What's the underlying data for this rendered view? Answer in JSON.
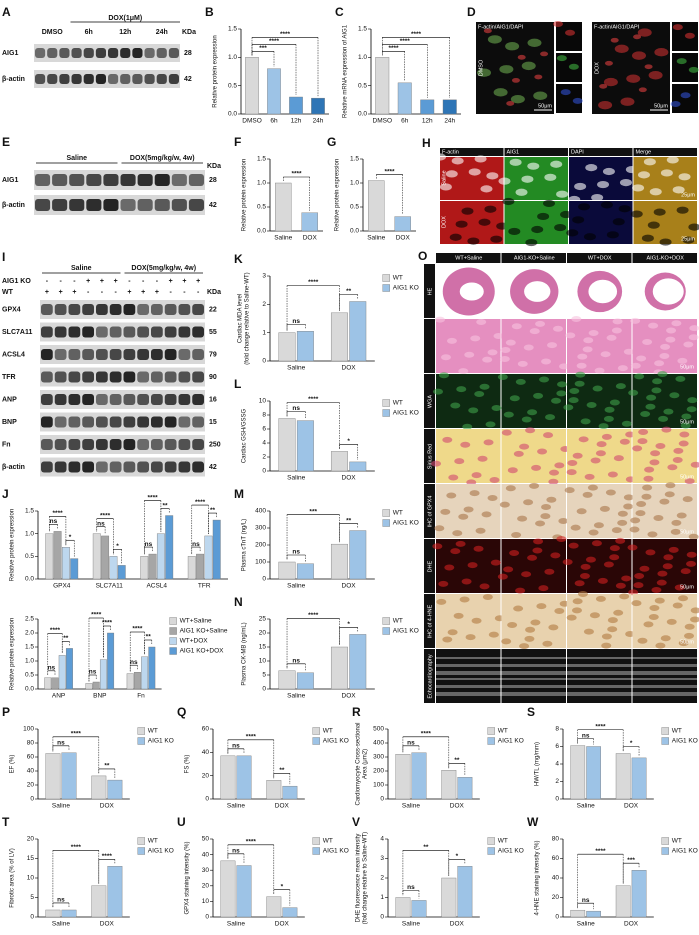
{
  "chart_data": [
    {
      "type": "bar",
      "letter": "B",
      "ylabel": "Relative protein expression",
      "categories": [
        "DMSO",
        "6h",
        "12h",
        "24h"
      ],
      "values": [
        1.0,
        0.8,
        0.3,
        0.28
      ],
      "colors": [
        "#d9d9d9",
        "#9dc3e6",
        "#5b9bd5",
        "#2e75b6"
      ],
      "ylim": [
        0,
        1.5
      ],
      "yticks": [
        {
          "value": 0,
          "label": "0.0"
        },
        0.5,
        {
          "value": 1,
          "label": "1.0"
        },
        1.5
      ],
      "significance": [
        "***",
        "****",
        "****"
      ]
    },
    {
      "type": "bar",
      "letter": "C",
      "ylabel": "Relative mRNA expression of AIG1",
      "categories": [
        "DMSO",
        "6h",
        "12h",
        "24h"
      ],
      "values": [
        1.0,
        0.55,
        0.25,
        0.25
      ],
      "colors": [
        "#d9d9d9",
        "#9dc3e6",
        "#5b9bd5",
        "#2e75b6"
      ],
      "ylim": [
        0,
        1.5
      ],
      "yticks": [
        {
          "value": 0,
          "label": "0.0"
        },
        0.5,
        {
          "value": 1,
          "label": "1.0"
        },
        1.5
      ],
      "significance": [
        "****",
        "****",
        "****"
      ]
    },
    {
      "type": "bar",
      "letter": "F",
      "ylabel": "Relative protein expression",
      "categories": [
        "Saline",
        "DOX"
      ],
      "values": [
        1.0,
        0.38
      ],
      "colors": [
        "#d9d9d9",
        "#9dc3e6"
      ],
      "ylim": [
        0,
        1.5
      ],
      "yticks": [
        {
          "value": 0,
          "label": "0.0"
        },
        0.5,
        {
          "value": 1,
          "label": "1.0"
        },
        1.5
      ],
      "significance": [
        "****"
      ]
    },
    {
      "type": "bar",
      "letter": "G",
      "ylabel": "Relative protein expression",
      "categories": [
        "Saline",
        "DOX"
      ],
      "values": [
        1.05,
        0.3
      ],
      "colors": [
        "#d9d9d9",
        "#9dc3e6"
      ],
      "ylim": [
        0,
        1.5
      ],
      "yticks": [
        {
          "value": 0,
          "label": "0.0"
        },
        0.5,
        {
          "value": 1,
          "label": "1.0"
        },
        1.5
      ],
      "significance": [
        "****"
      ]
    },
    {
      "type": "bar",
      "letter": "K",
      "ylabel": [
        "Cardiac MDA level",
        "(fold change relative to Saline-WT)"
      ],
      "categories": [
        "Saline",
        "DOX"
      ],
      "series": [
        {
          "name": "WT",
          "color": "#d9d9d9",
          "values": [
            1.0,
            1.7
          ]
        },
        {
          "name": "AIG1 KO",
          "color": "#9dc3e6",
          "values": [
            1.05,
            2.1
          ]
        }
      ],
      "ylim": [
        0,
        3
      ],
      "yticks": [
        0,
        1,
        2,
        3
      ],
      "significance": [
        "ns",
        "****",
        "**"
      ],
      "legend": "right"
    },
    {
      "type": "bar",
      "letter": "L",
      "ylabel": "Cardiac GSH/GSSG",
      "categories": [
        "Saline",
        "DOX"
      ],
      "series": [
        {
          "name": "WT",
          "color": "#d9d9d9",
          "values": [
            7.5,
            2.8
          ]
        },
        {
          "name": "AIG1 KO",
          "color": "#9dc3e6",
          "values": [
            7.2,
            1.3
          ]
        }
      ],
      "ylim": [
        0,
        10
      ],
      "yticks": [
        0,
        2,
        4,
        6,
        8,
        10
      ],
      "significance": [
        "ns",
        "****",
        "*"
      ],
      "legend": "right"
    },
    {
      "type": "bar",
      "letter": "M",
      "ylabel": "Plasma cTnT (ng/L)",
      "categories": [
        "Saline",
        "DOX"
      ],
      "series": [
        {
          "name": "WT",
          "color": "#d9d9d9",
          "values": [
            100,
            205
          ]
        },
        {
          "name": "AIG1 KO",
          "color": "#9dc3e6",
          "values": [
            90,
            285
          ]
        }
      ],
      "ylim": [
        0,
        400
      ],
      "yticks": [
        0,
        100,
        200,
        300,
        400
      ],
      "significance": [
        "ns",
        "***",
        "**"
      ],
      "legend": "right"
    },
    {
      "type": "bar",
      "letter": "N",
      "ylabel": "Plasma CK-MB (ng/mL)",
      "categories": [
        "Saline",
        "DOX"
      ],
      "series": [
        {
          "name": "WT",
          "color": "#d9d9d9",
          "values": [
            6.5,
            15
          ]
        },
        {
          "name": "AIG1 KO",
          "color": "#9dc3e6",
          "values": [
            5.8,
            19.5
          ]
        }
      ],
      "ylim": [
        0,
        25
      ],
      "yticks": [
        0,
        5,
        10,
        15,
        20,
        25
      ],
      "significance": [
        "ns",
        "****",
        "*"
      ],
      "legend": "right"
    },
    {
      "type": "bar",
      "letter": "J",
      "ylabel": "Relative protein expression",
      "categories": [
        "GPX4",
        "SLC7A11",
        "ACSL4",
        "TFR"
      ],
      "series": [
        {
          "color": "#d9d9d9",
          "values": [
            1.0,
            1.0,
            0.5,
            0.5
          ]
        },
        {
          "color": "#a6a6a6",
          "values": [
            1.05,
            0.95,
            0.55,
            0.55
          ]
        },
        {
          "color": "#bdd7ee",
          "values": [
            0.7,
            0.5,
            1.0,
            0.95
          ]
        },
        {
          "color": "#5b9bd5",
          "values": [
            0.45,
            0.3,
            1.4,
            1.3
          ]
        }
      ],
      "ylim": [
        0,
        1.5
      ],
      "yticks": [
        {
          "value": 0,
          "label": "0.0"
        },
        0.5,
        {
          "value": 1,
          "label": "1.0"
        },
        1.5
      ],
      "significance": [
        [
          "ns",
          "****",
          "*"
        ],
        [
          "ns",
          "****",
          "*"
        ],
        [
          "ns",
          "****",
          "**"
        ],
        [
          "ns",
          "****",
          "**"
        ]
      ],
      "legend": "none"
    },
    {
      "type": "bar",
      "ylabel": "Relative protein expression",
      "categories": [
        "ANP",
        "BNP",
        "Fn"
      ],
      "series": [
        {
          "name": "WT+Saline",
          "color": "#d9d9d9",
          "values": [
            0.4,
            0.2,
            0.55
          ]
        },
        {
          "name": "AIG1 KO+Saline",
          "color": "#a6a6a6",
          "values": [
            0.4,
            0.25,
            0.6
          ]
        },
        {
          "name": "WT+DOX",
          "color": "#bdd7ee",
          "values": [
            1.2,
            1.05,
            1.15
          ]
        },
        {
          "name": "AIG1 KO+DOX",
          "color": "#5b9bd5",
          "values": [
            1.45,
            2.0,
            1.5
          ]
        }
      ],
      "ylim": [
        0,
        2.5
      ],
      "yticks": [
        {
          "value": 0,
          "label": "0.0"
        },
        0.5,
        {
          "value": 1,
          "label": "1.0"
        },
        1.5,
        {
          "value": 2,
          "label": "2.0"
        },
        2.5
      ],
      "significance": [
        [
          "ns",
          "****",
          "**"
        ],
        [
          "ns",
          "****",
          "****"
        ],
        [
          "ns",
          "****",
          "**"
        ]
      ],
      "legend": "right"
    },
    {
      "type": "bar",
      "letter": "P",
      "ylabel": "EF (%)",
      "categories": [
        "Saline",
        "DOX"
      ],
      "series": [
        {
          "name": "WT",
          "color": "#d9d9d9",
          "values": [
            65,
            33
          ]
        },
        {
          "name": "AIG1 KO",
          "color": "#9dc3e6",
          "values": [
            66,
            27
          ]
        }
      ],
      "ylim": [
        0,
        100
      ],
      "yticks": [
        0,
        20,
        40,
        60,
        80,
        100
      ],
      "significance": [
        "ns",
        "****",
        "**"
      ],
      "legend": "right"
    },
    {
      "type": "bar",
      "letter": "Q",
      "ylabel": "FS (%)",
      "categories": [
        "Saline",
        "DOX"
      ],
      "series": [
        {
          "name": "WT",
          "color": "#d9d9d9",
          "values": [
            37,
            16
          ]
        },
        {
          "name": "AIG1 KO",
          "color": "#9dc3e6",
          "values": [
            37,
            11
          ]
        }
      ],
      "ylim": [
        0,
        60
      ],
      "yticks": [
        0,
        20,
        40,
        60
      ],
      "significance": [
        "ns",
        "****",
        "**"
      ],
      "legend": "right"
    },
    {
      "type": "bar",
      "letter": "R",
      "ylabel": [
        "Cardiomyocyte Cross-sectional",
        "Area (μm2)"
      ],
      "categories": [
        "Saline",
        "DOX"
      ],
      "series": [
        {
          "name": "WT",
          "color": "#d9d9d9",
          "values": [
            320,
            205
          ]
        },
        {
          "name": "AIG1 KO",
          "color": "#9dc3e6",
          "values": [
            330,
            155
          ]
        }
      ],
      "ylim": [
        0,
        500
      ],
      "yticks": [
        0,
        100,
        200,
        300,
        400,
        500
      ],
      "significance": [
        "ns",
        "****",
        "**"
      ],
      "legend": "right"
    },
    {
      "type": "bar",
      "letter": "S",
      "ylabel": "HW/TL (mg/mm)",
      "categories": [
        "Saline",
        "DOX"
      ],
      "series": [
        {
          "name": "WT",
          "color": "#d9d9d9",
          "values": [
            6.1,
            5.2
          ]
        },
        {
          "name": "AIG1 KO",
          "color": "#9dc3e6",
          "values": [
            6.0,
            4.7
          ]
        }
      ],
      "ylim": [
        0,
        8
      ],
      "yticks": [
        0,
        2,
        4,
        6,
        8
      ],
      "significance": [
        "ns",
        "****",
        "*"
      ],
      "legend": "right"
    },
    {
      "type": "bar",
      "letter": "T",
      "ylabel": "Fibrotic area (% of LV)",
      "categories": [
        "Saline",
        "DOX"
      ],
      "series": [
        {
          "name": "WT",
          "color": "#d9d9d9",
          "values": [
            1.8,
            8
          ]
        },
        {
          "name": "AIG1 KO",
          "color": "#9dc3e6",
          "values": [
            1.8,
            13
          ]
        }
      ],
      "ylim": [
        0,
        20
      ],
      "yticks": [
        0,
        5,
        10,
        15,
        20
      ],
      "significance": [
        "ns",
        "****",
        "****"
      ],
      "legend": "right"
    },
    {
      "type": "bar",
      "letter": "U",
      "ylabel": "GPX4 staining intensity (%)",
      "categories": [
        "Saline",
        "DOX"
      ],
      "series": [
        {
          "name": "WT",
          "color": "#d9d9d9",
          "values": [
            36,
            13
          ]
        },
        {
          "name": "AIG1 KO",
          "color": "#9dc3e6",
          "values": [
            33,
            6
          ]
        }
      ],
      "ylim": [
        0,
        50
      ],
      "yticks": [
        0,
        10,
        20,
        30,
        40,
        50
      ],
      "significance": [
        "ns",
        "****",
        "*"
      ],
      "legend": "right"
    },
    {
      "type": "bar",
      "letter": "V",
      "ylabel": [
        "DHE fluorescence mean intensity",
        "(fold change relative to Saline-WT)"
      ],
      "categories": [
        "Saline",
        "DOX"
      ],
      "series": [
        {
          "name": "WT",
          "color": "#d9d9d9",
          "values": [
            1.0,
            2.0
          ]
        },
        {
          "name": "AIG1 KO",
          "color": "#9dc3e6",
          "values": [
            0.85,
            2.6
          ]
        }
      ],
      "ylim": [
        0,
        4
      ],
      "yticks": [
        0,
        1,
        2,
        3,
        4
      ],
      "significance": [
        "ns",
        "**",
        "*"
      ],
      "legend": "right"
    },
    {
      "type": "bar",
      "letter": "W",
      "ylabel": "4-HNE staining intensity (%)",
      "categories": [
        "Saline",
        "DOX"
      ],
      "series": [
        {
          "name": "WT",
          "color": "#d9d9d9",
          "values": [
            7,
            32
          ]
        },
        {
          "name": "AIG1 KO",
          "color": "#9dc3e6",
          "values": [
            6,
            48
          ]
        }
      ],
      "ylim": [
        0,
        80
      ],
      "yticks": [
        0,
        20,
        40,
        60,
        80
      ],
      "significance": [
        "ns",
        "****",
        "***"
      ],
      "legend": "right"
    }
  ],
  "blots": [
    {
      "letter": "A",
      "header": "DOX(1μM)",
      "lanes": [
        "DMSO",
        "6h",
        "12h",
        "24h"
      ],
      "unit": "KDa",
      "rows": [
        {
          "name": "AIG1",
          "kda": 28
        },
        {
          "name": "β-actin",
          "kda": 42
        }
      ]
    },
    {
      "letter": "E",
      "groups": [
        "Saline",
        "DOX(5mg/kg/w, 4w)"
      ],
      "unit": "KDa",
      "rows": [
        {
          "name": "AIG1",
          "kda": 28
        },
        {
          "name": "β-actin",
          "kda": 42
        }
      ]
    },
    {
      "letter": "I",
      "groups": [
        "Saline",
        "DOX(5mg/kg/w, 4w)"
      ],
      "genotypes": [
        {
          "name": "AIG1 KO",
          "signs": [
            "-",
            "-",
            "-",
            "+",
            "+",
            "+",
            "-",
            "-",
            "-",
            "+",
            "+",
            "+"
          ]
        },
        {
          "name": "WT",
          "signs": [
            "+",
            "+",
            "+",
            "-",
            "-",
            "-",
            "+",
            "+",
            "+",
            "-",
            "-",
            "-"
          ]
        }
      ],
      "unit": "KDa",
      "rows": [
        {
          "name": "GPX4",
          "kda": 22
        },
        {
          "name": "SLC7A11",
          "kda": 55
        },
        {
          "name": "ACSL4",
          "kda": 79
        },
        {
          "name": "TFR",
          "kda": 90
        },
        {
          "name": "ANP",
          "kda": 16
        },
        {
          "name": "BNP",
          "kda": 15
        },
        {
          "name": "Fn",
          "kda": 250
        },
        {
          "name": "β-actin",
          "kda": 42
        }
      ]
    }
  ],
  "cell_images": {
    "letter": "D",
    "stain": "F-actin/AIG1/DAPI",
    "conditions": [
      "DMSO",
      "DOX"
    ],
    "scale": "50μm"
  },
  "tissue_if": {
    "letter": "H",
    "columns": [
      "F-actin",
      "AIG1",
      "DAPI",
      "Merge"
    ],
    "rows": [
      "Saline",
      "DOX"
    ],
    "scale": "25μm"
  },
  "histology": {
    "letter": "O",
    "columns": [
      "WT+Saline",
      "AIG1-KO+Saline",
      "WT+DOX",
      "AIG1-KO+DOX"
    ],
    "rows": [
      {
        "name": "HE",
        "scale": "1mm"
      },
      {
        "scale": "50μm"
      },
      {
        "name": "WGA",
        "scale": "50μm"
      },
      {
        "name": "Sirius Red",
        "scale": "50μm"
      },
      {
        "name": "IHC of GPX4",
        "scale": "50μm"
      },
      {
        "name": "DHE",
        "scale": "50μm"
      },
      {
        "name": "IHC of 4-HNE",
        "scale": "50μm"
      },
      {
        "name": "Echocardiography"
      }
    ]
  }
}
